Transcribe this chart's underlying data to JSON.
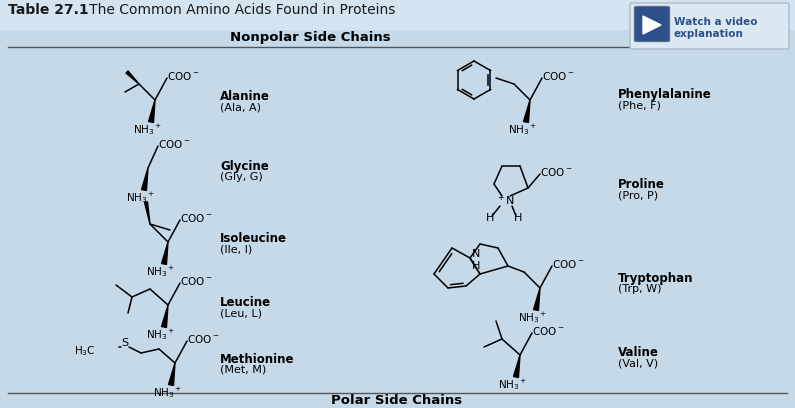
{
  "title_bold": "Table 27.1",
  "title_rest": "   The Common Amino Acids Found in Proteins",
  "section_nonpolar": "Nonpolar Side Chains",
  "section_polar": "Polar Side Chains",
  "bg_color": "#c5d9e8",
  "table_bg": "#c5d9e8",
  "watch_text1": "Watch a video",
  "watch_text2": "explanation",
  "watch_bg": "#2d4f8a",
  "watch_border": "#6688aa"
}
